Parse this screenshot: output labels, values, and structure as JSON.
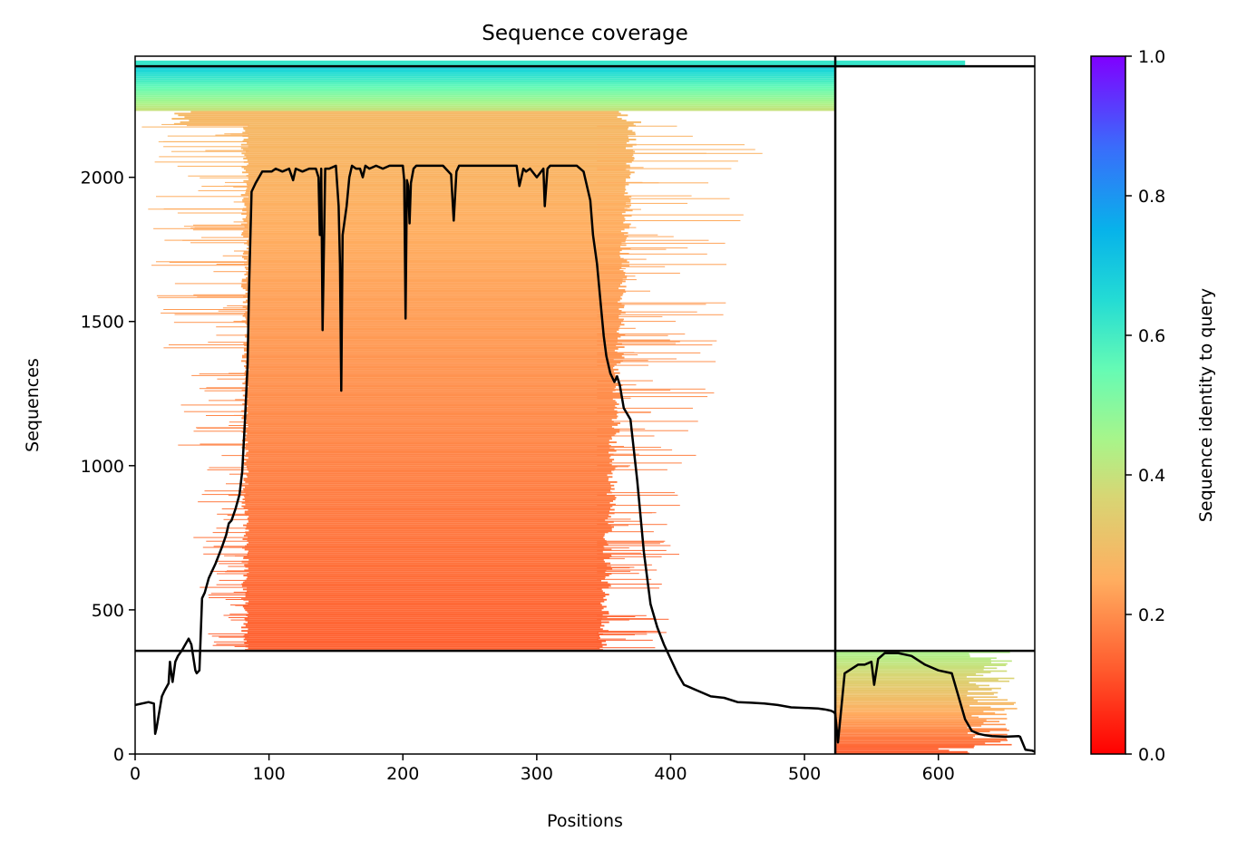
{
  "chart_data": {
    "type": "heatmap",
    "title": "Sequence coverage",
    "xlabel": "Positions",
    "ylabel": "Sequences",
    "xlim": [
      0,
      672
    ],
    "ylim": [
      0,
      2420
    ],
    "x_ticks": [
      0,
      100,
      200,
      300,
      400,
      500,
      600
    ],
    "y_ticks": [
      0,
      500,
      1000,
      1500,
      2000
    ],
    "grid": false,
    "colorbar": {
      "label": "Sequence identity to query",
      "range": [
        0.0,
        1.0
      ],
      "ticks": [
        "0.0",
        "0.2",
        "0.4",
        "0.6",
        "0.8",
        "1.0"
      ],
      "colormap": "rainbow_r"
    },
    "chain_boundary_x": 523,
    "chain_boundary_y": 358,
    "coverage_line": {
      "color": "#000000",
      "x": [
        0,
        10,
        14,
        15,
        16,
        20,
        22,
        25,
        26,
        27,
        28,
        30,
        32,
        35,
        40,
        42,
        45,
        46,
        48,
        50,
        52,
        55,
        60,
        65,
        68,
        70,
        72,
        75,
        78,
        80,
        82,
        84,
        85,
        87,
        90,
        95,
        100,
        102,
        105,
        110,
        115,
        118,
        120,
        125,
        130,
        135,
        137,
        138,
        139,
        140,
        142,
        145,
        150,
        152,
        153,
        154,
        155,
        158,
        160,
        162,
        165,
        168,
        170,
        172,
        175,
        180,
        185,
        190,
        195,
        200,
        201,
        202,
        203,
        204,
        205,
        206,
        208,
        210,
        215,
        220,
        230,
        236,
        238,
        240,
        242,
        250,
        260,
        270,
        280,
        285,
        287,
        290,
        292,
        295,
        300,
        305,
        306,
        308,
        310,
        320,
        330,
        335,
        340,
        342,
        345,
        348,
        350,
        352,
        355,
        358,
        360,
        362,
        365,
        370,
        375,
        380,
        385,
        390,
        395,
        400,
        405,
        410,
        420,
        430,
        440,
        450,
        460,
        470,
        480,
        490,
        500,
        510,
        515,
        518,
        520,
        522,
        523,
        525,
        530,
        540,
        545,
        550,
        552,
        555,
        560,
        570,
        580,
        590,
        600,
        610,
        615,
        620,
        625,
        630,
        635,
        640,
        650,
        660,
        661,
        665,
        670,
        672
      ],
      "y": [
        170,
        180,
        175,
        70,
        90,
        200,
        220,
        245,
        320,
        280,
        250,
        320,
        340,
        360,
        400,
        380,
        290,
        280,
        290,
        540,
        560,
        610,
        660,
        720,
        760,
        800,
        810,
        850,
        900,
        980,
        1150,
        1350,
        1600,
        1950,
        1980,
        2020,
        2020,
        2020,
        2030,
        2020,
        2030,
        1990,
        2030,
        2020,
        2030,
        2030,
        2000,
        1800,
        2030,
        1470,
        2030,
        2030,
        2040,
        1900,
        1700,
        1260,
        1800,
        1900,
        2000,
        2040,
        2030,
        2030,
        2000,
        2040,
        2030,
        2040,
        2030,
        2040,
        2040,
        2040,
        1990,
        1510,
        1990,
        1970,
        1840,
        1980,
        2030,
        2040,
        2040,
        2040,
        2040,
        2010,
        1850,
        2020,
        2040,
        2040,
        2040,
        2040,
        2040,
        2040,
        1970,
        2030,
        2020,
        2030,
        2000,
        2030,
        1900,
        2030,
        2040,
        2040,
        2040,
        2020,
        1920,
        1800,
        1700,
        1550,
        1450,
        1380,
        1320,
        1290,
        1310,
        1280,
        1200,
        1160,
        950,
        700,
        520,
        440,
        380,
        330,
        280,
        240,
        220,
        200,
        195,
        180,
        178,
        175,
        170,
        162,
        160,
        158,
        155,
        152,
        150,
        145,
        140,
        40,
        280,
        310,
        310,
        320,
        240,
        330,
        350,
        350,
        340,
        310,
        290,
        280,
        200,
        120,
        80,
        70,
        65,
        62,
        60,
        62,
        60,
        15,
        12,
        8,
        5
      ]
    },
    "query_row": {
      "sequence_y": 2385,
      "chain_a_range": [
        0,
        523
      ],
      "chain_b_range": [
        523,
        672
      ]
    },
    "chain_a_block": {
      "sequence_range": [
        358,
        2385
      ],
      "core_start_x": 85,
      "core_end_x": 345,
      "extended_start_x": 25,
      "extended_end_x": 450,
      "identity_top": 0.7,
      "identity_mid": 0.28,
      "identity_bottom": 0.13
    },
    "chain_b_block": {
      "sequence_range": [
        0,
        358
      ],
      "start_x": 523,
      "end_x": 660,
      "identity_top": 0.45,
      "identity_bottom": 0.12
    }
  }
}
